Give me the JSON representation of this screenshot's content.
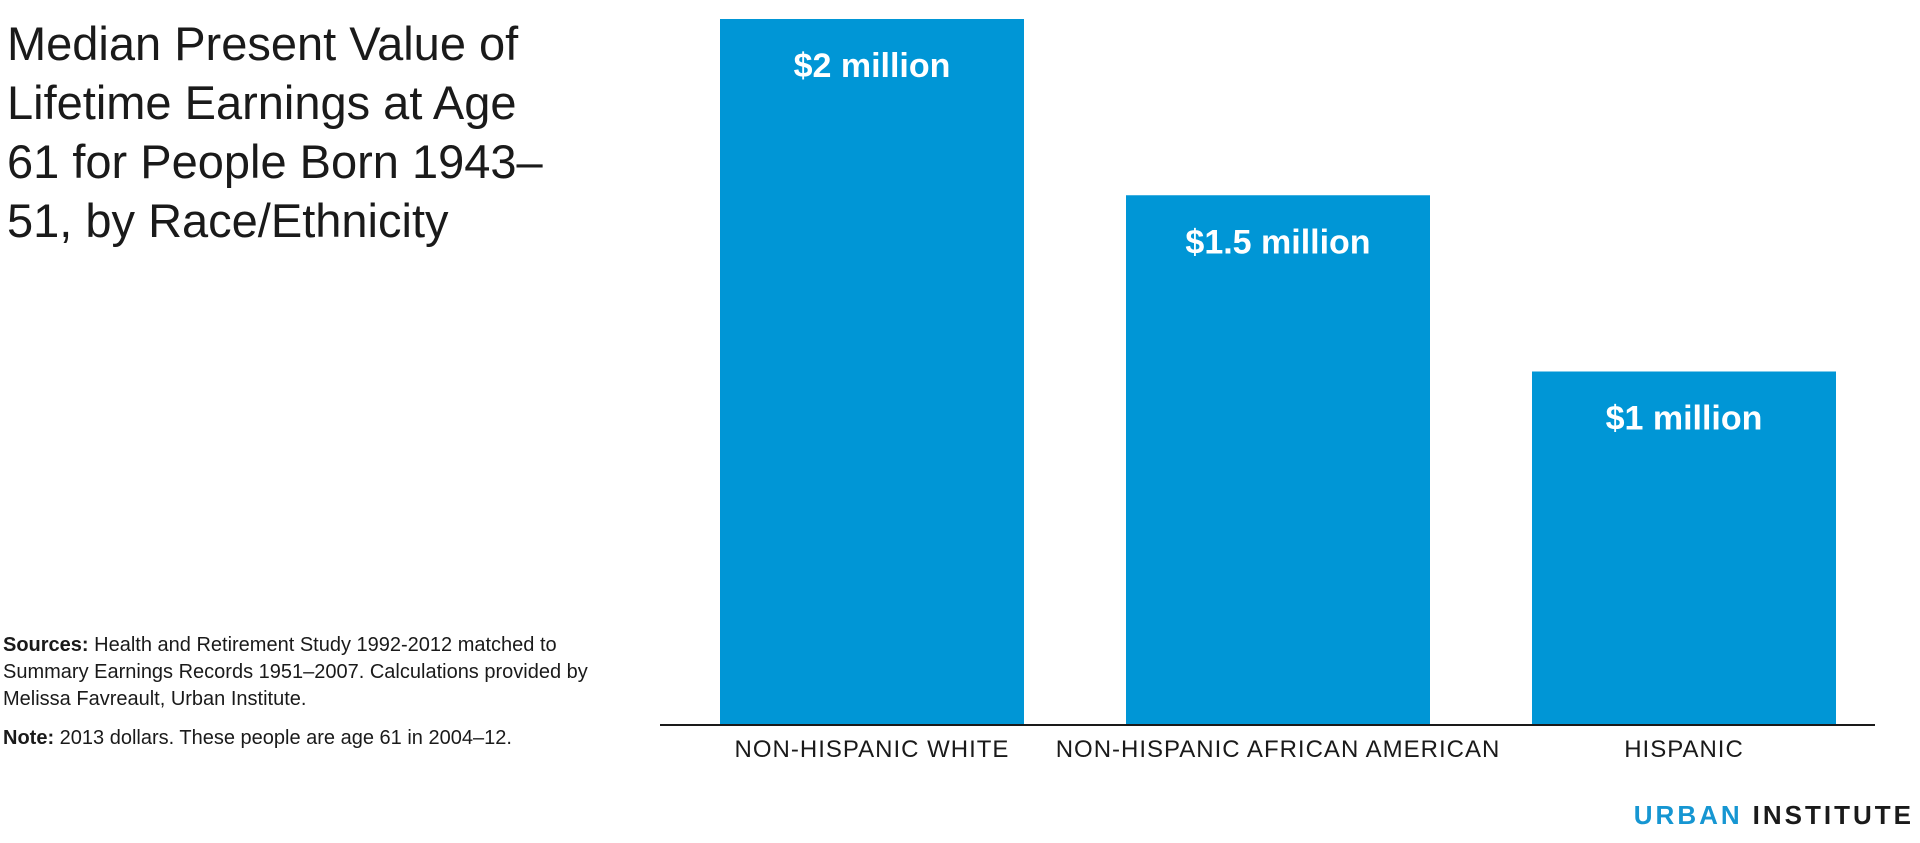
{
  "notes": {
    "sources_label": "Sources:",
    "sources_text": "Health and Retirement Study 1992-2012 matched to Summary Earnings Records 1951–2007. Calculations provided by Melissa Favreault, Urban Institute.",
    "note_label": "Note:",
    "note_text": "2013 dollars. These people are age 61 in 2004–12."
  },
  "brand": {
    "part1": "URBAN",
    "part2": "INSTITUTE"
  },
  "colors": {
    "bar": "#0096d6",
    "axis": "#1a1a1a",
    "brand_accent": "#1696d2"
  },
  "chart_data": {
    "type": "bar",
    "title": "Median Present Value of Lifetime Earnings at Age 61 for People Born 1943–51, by Race/Ethnicity",
    "categories": [
      "NON-HISPANIC WHITE",
      "NON-HISPANIC AFRICAN AMERICAN",
      "HISPANIC"
    ],
    "values": [
      2.0,
      1.5,
      1.0
    ],
    "value_labels": [
      "$2 million",
      "$1.5 million",
      "$1 million"
    ],
    "unit": "million 2013 dollars",
    "ylim": [
      0,
      2.0
    ],
    "grid": false,
    "legend": "none"
  }
}
